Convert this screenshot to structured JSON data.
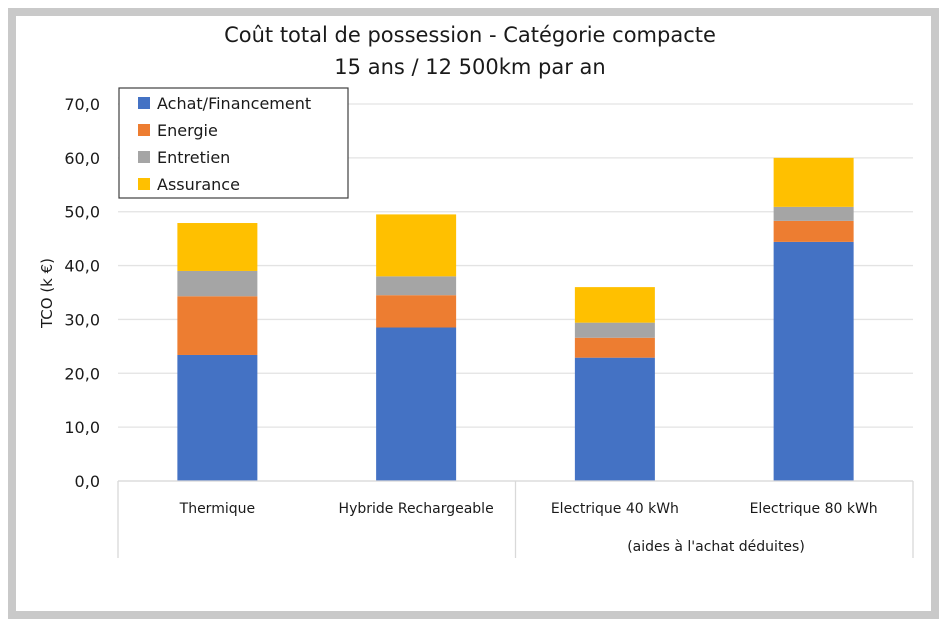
{
  "chart_data": {
    "type": "bar",
    "stacked": true,
    "title": "Coût total de possession - Catégorie compacte",
    "subtitle": "15 ans / 12 500km par an",
    "xlabel": "",
    "ylabel": "TCO (k €)",
    "ylim": [
      0,
      70
    ],
    "yticks": [
      "0,0",
      "10,0",
      "20,0",
      "30,0",
      "40,0",
      "50,0",
      "60,0",
      "70,0"
    ],
    "grid": true,
    "legend_position": "top-left",
    "categories": [
      "Thermique",
      "Hybride Rechargeable",
      "Electrique 40 kWh",
      "Electrique 80 kWh"
    ],
    "category_group_label": "(aides à l'achat déduites)",
    "series": [
      {
        "name": "Achat/Financement",
        "color": "#4472c4",
        "values": [
          23.4,
          28.5,
          22.9,
          44.4
        ]
      },
      {
        "name": "Energie",
        "color": "#ed7d31",
        "values": [
          10.9,
          6.0,
          3.7,
          3.9
        ]
      },
      {
        "name": "Entretien",
        "color": "#a5a5a5",
        "values": [
          4.7,
          3.5,
          2.8,
          2.6
        ]
      },
      {
        "name": "Assurance",
        "color": "#ffc000",
        "values": [
          8.9,
          11.5,
          6.6,
          9.1
        ]
      }
    ]
  }
}
